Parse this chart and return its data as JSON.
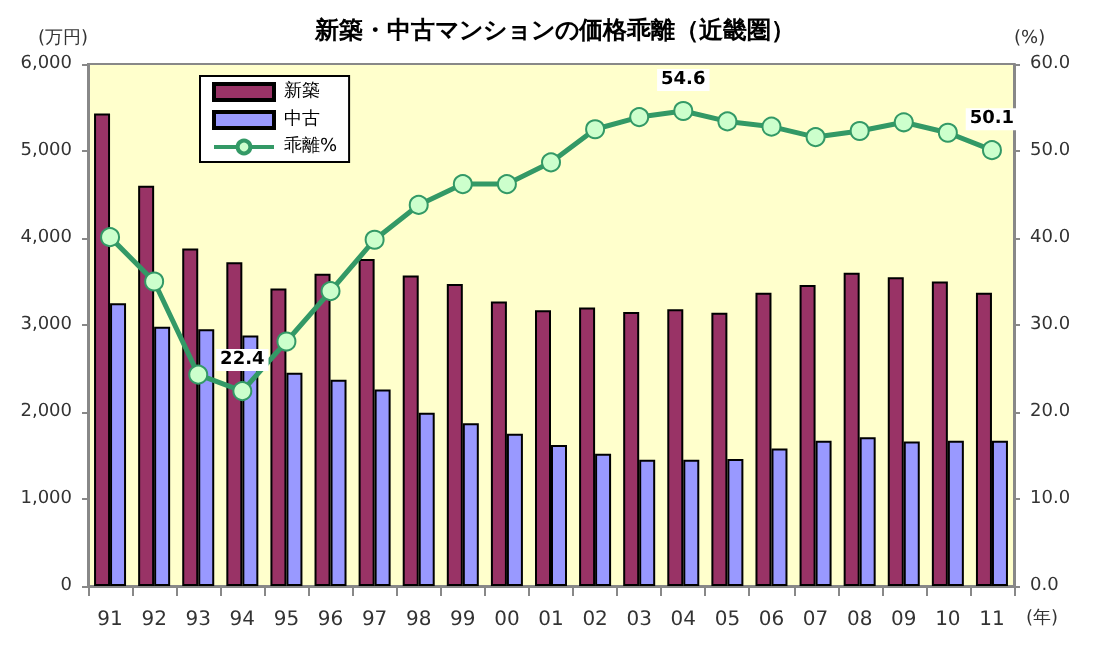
{
  "chart_data": {
    "type": "bar",
    "title": "新築・中古マンションの価格乖離（近畿圏）",
    "xlabel": "(年)",
    "ylabel": "(万円)",
    "y2label": "(%)",
    "categories": [
      "91",
      "92",
      "93",
      "94",
      "95",
      "96",
      "97",
      "98",
      "99",
      "00",
      "01",
      "02",
      "03",
      "04",
      "05",
      "06",
      "07",
      "08",
      "09",
      "10",
      "11"
    ],
    "series": [
      {
        "name": "新築",
        "color": "#993366",
        "values": [
          5430,
          4600,
          3880,
          3720,
          3420,
          3590,
          3760,
          3570,
          3470,
          3270,
          3170,
          3200,
          3150,
          3180,
          3140,
          3370,
          3460,
          3600,
          3550,
          3500,
          3370
        ]
      },
      {
        "name": "中古",
        "color": "#9999ff",
        "values": [
          3250,
          2980,
          2950,
          2880,
          2450,
          2370,
          2260,
          1990,
          1870,
          1750,
          1620,
          1520,
          1450,
          1450,
          1460,
          1580,
          1670,
          1710,
          1660,
          1670,
          1670
        ]
      },
      {
        "name": "乖離%",
        "type": "line",
        "axis": "y2",
        "color": "#339966",
        "marker": "circle",
        "values": [
          40.1,
          35.0,
          24.3,
          22.4,
          28.1,
          33.9,
          39.8,
          43.8,
          46.2,
          46.2,
          48.7,
          52.5,
          53.9,
          54.6,
          53.4,
          52.8,
          51.6,
          52.3,
          53.3,
          52.1,
          50.1
        ],
        "value_labels": [
          null,
          null,
          null,
          "22.4",
          null,
          null,
          null,
          null,
          null,
          null,
          null,
          null,
          null,
          "54.6",
          null,
          null,
          null,
          null,
          null,
          null,
          "50.1"
        ]
      }
    ],
    "ylim": [
      0,
      6000
    ],
    "yticks": [
      {
        "value": 0,
        "label": "0"
      },
      {
        "value": 1000,
        "label": "1,000"
      },
      {
        "value": 2000,
        "label": "2,000"
      },
      {
        "value": 3000,
        "label": "3,000"
      },
      {
        "value": 4000,
        "label": "4,000"
      },
      {
        "value": 5000,
        "label": "5,000"
      },
      {
        "value": 6000,
        "label": "6,000"
      }
    ],
    "y2lim": [
      0,
      60
    ],
    "y2ticks": [
      {
        "value": 0,
        "label": "0.0"
      },
      {
        "value": 10,
        "label": "10.0"
      },
      {
        "value": 20,
        "label": "20.0"
      },
      {
        "value": 30,
        "label": "30.0"
      },
      {
        "value": 40,
        "label": "40.0"
      },
      {
        "value": 50,
        "label": "50.0"
      },
      {
        "value": 60,
        "label": "60.0"
      }
    ],
    "grid": false,
    "legend": "top left"
  }
}
